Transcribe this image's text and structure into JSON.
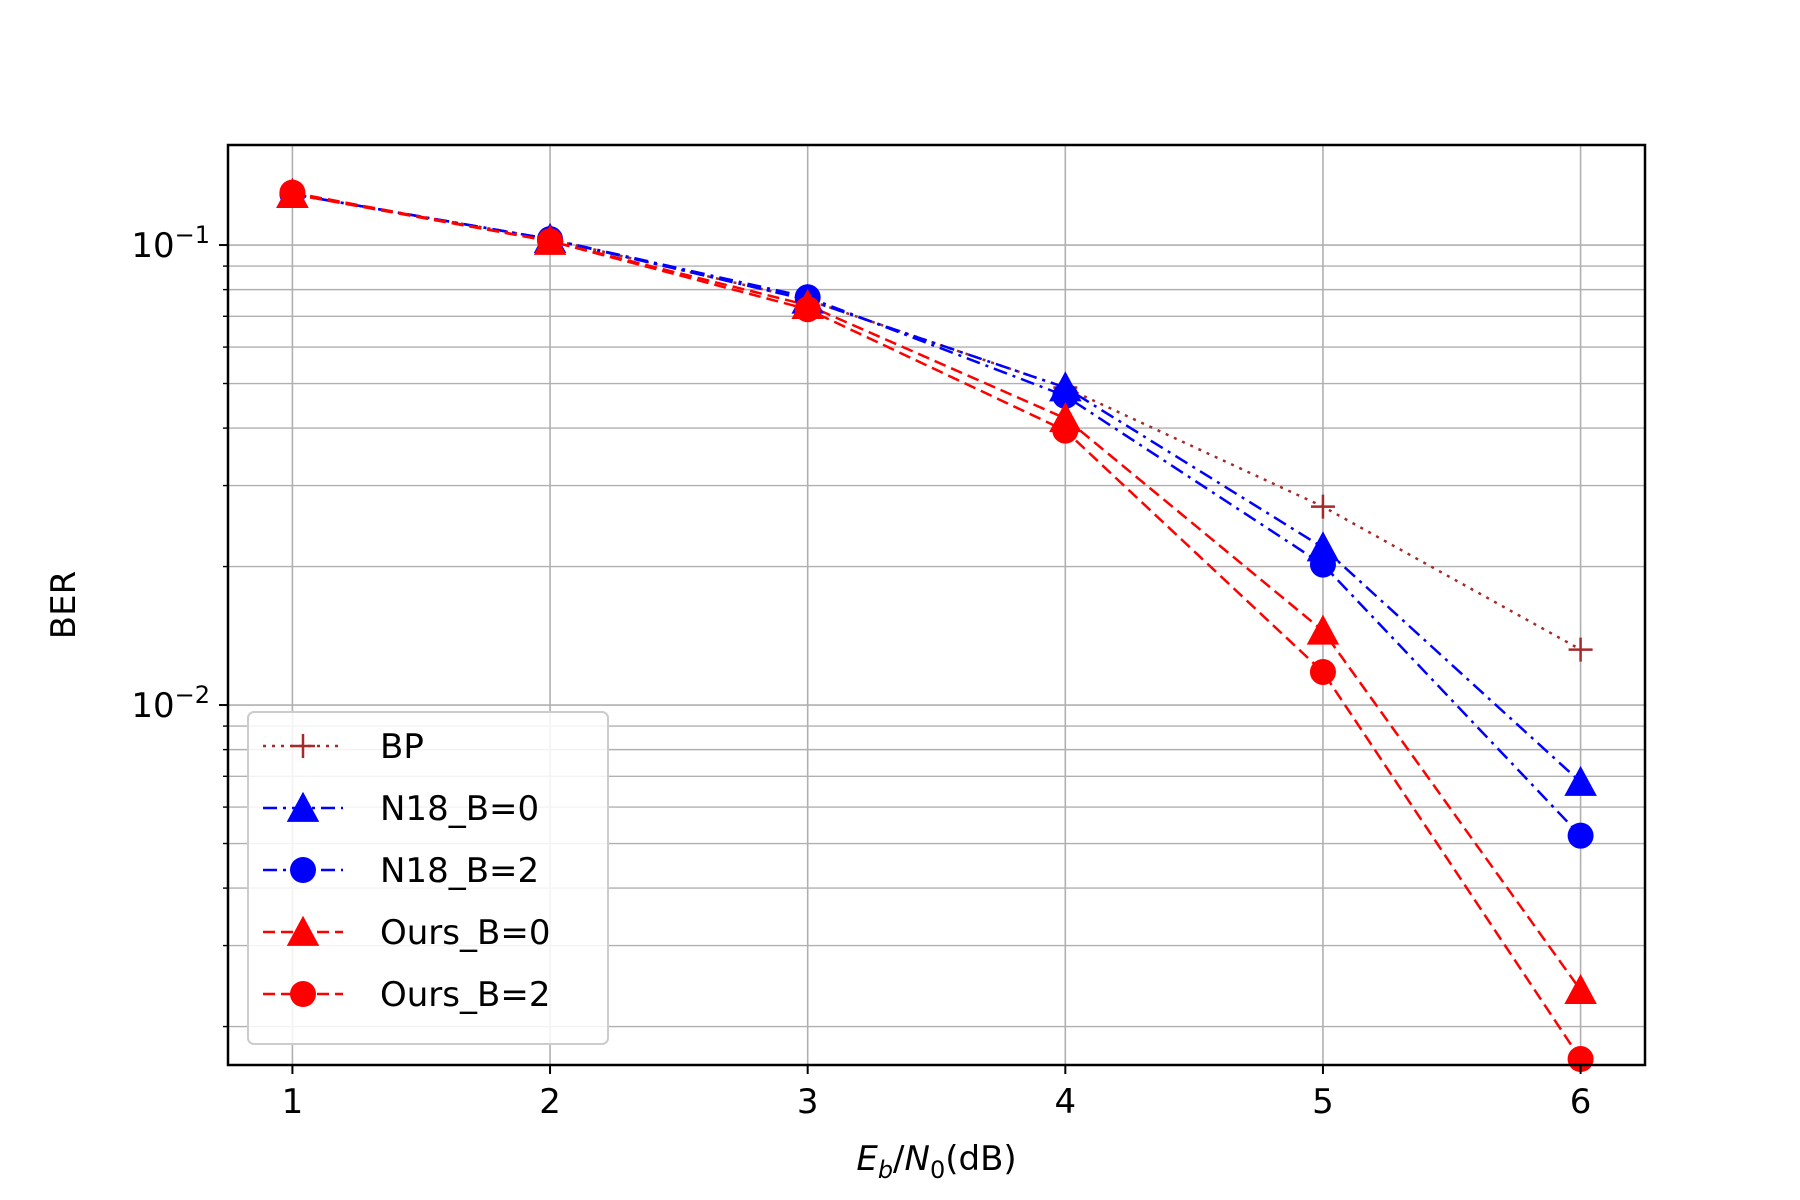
{
  "chart_data": {
    "type": "line",
    "title": "",
    "xlabel": "E_b/N_0(dB)",
    "ylabel": "BER",
    "yscale": "log",
    "xlim": [
      0.75,
      6.25
    ],
    "ylim": [
      0.00165,
      0.165
    ],
    "x": [
      1,
      2,
      3,
      4,
      5,
      6
    ],
    "x_ticks": [
      "1",
      "2",
      "3",
      "4",
      "5",
      "6"
    ],
    "y_ticks": [
      {
        "value": 0.1,
        "base": "10",
        "exp": "−1"
      },
      {
        "value": 0.01,
        "base": "10",
        "exp": "−2"
      }
    ],
    "grid": true,
    "legend_position": "lower-left",
    "series": [
      {
        "name": "BP",
        "color": "#a52a2a",
        "marker": "plus",
        "linestyle": "dotted",
        "values": [
          0.129,
          0.103,
          0.076,
          0.049,
          0.027,
          0.0132
        ]
      },
      {
        "name": "N18_B=0",
        "color": "#0000ff",
        "marker": "triangle",
        "linestyle": "dashdot",
        "values": [
          0.129,
          0.103,
          0.076,
          0.049,
          0.022,
          0.0068
        ]
      },
      {
        "name": "N18_B=2",
        "color": "#0000ff",
        "marker": "circle",
        "linestyle": "dashdot",
        "values": [
          0.129,
          0.103,
          0.077,
          0.047,
          0.0202,
          0.0052
        ]
      },
      {
        "name": "Ours_B=0",
        "color": "#ff0000",
        "marker": "triangle",
        "linestyle": "dashed",
        "values": [
          0.129,
          0.102,
          0.074,
          0.042,
          0.0145,
          0.0024
        ]
      },
      {
        "name": "Ours_B=2",
        "color": "#ff0000",
        "marker": "circle",
        "linestyle": "dashed",
        "values": [
          0.13,
          0.102,
          0.0725,
          0.0395,
          0.0118,
          0.0017
        ]
      }
    ]
  }
}
